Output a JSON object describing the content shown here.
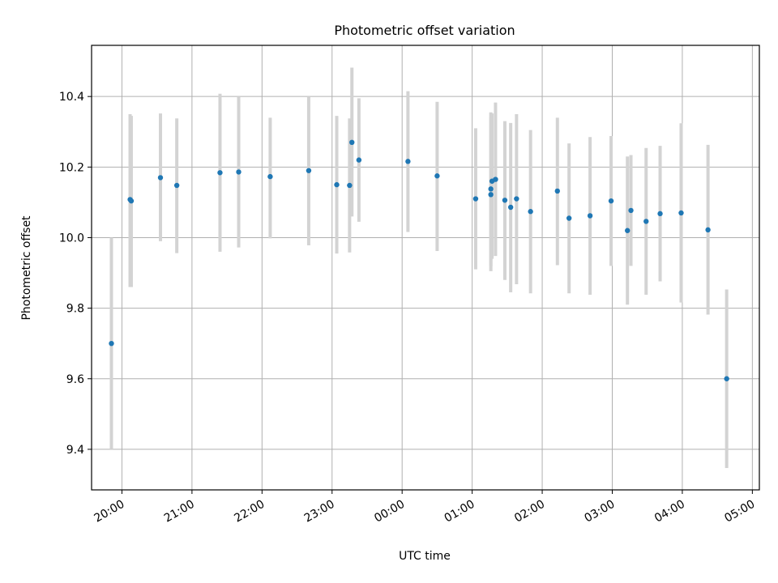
{
  "chart_data": {
    "type": "scatter",
    "title": "Photometric offset variation",
    "xlabel": "UTC time",
    "ylabel": "Photometric offset",
    "grid": true,
    "legend": "none",
    "xlim": [
      "19:34",
      "05:06"
    ],
    "ylim": [
      9.285,
      10.545
    ],
    "x_ticks": [
      "20:00",
      "21:00",
      "22:00",
      "23:00",
      "00:00",
      "01:00",
      "02:00",
      "03:00",
      "04:00",
      "05:00"
    ],
    "y_ticks": [
      9.4,
      9.6,
      9.8,
      10.0,
      10.2,
      10.4
    ],
    "y_tick_labels": [
      "9.4",
      "9.6",
      "9.8",
      "10.0",
      "10.2",
      "10.4"
    ],
    "colors": {
      "point": "#1f77b4",
      "error_bar": "#d3d3d3",
      "grid": "#b0b0b0"
    },
    "series": [
      {
        "points": [
          {
            "time": "19:51",
            "y": 9.7,
            "lo": 9.4,
            "hi": 10.0
          },
          {
            "time": "20:07",
            "y": 10.108,
            "lo": 9.86,
            "hi": 10.35
          },
          {
            "time": "20:08",
            "y": 10.104,
            "lo": 9.86,
            "hi": 10.345
          },
          {
            "time": "20:33",
            "y": 10.17,
            "lo": 9.99,
            "hi": 10.352
          },
          {
            "time": "20:47",
            "y": 10.148,
            "lo": 9.956,
            "hi": 10.338
          },
          {
            "time": "21:24",
            "y": 10.184,
            "lo": 9.96,
            "hi": 10.408
          },
          {
            "time": "21:40",
            "y": 10.186,
            "lo": 9.972,
            "hi": 10.4
          },
          {
            "time": "22:07",
            "y": 10.173,
            "lo": 9.998,
            "hi": 10.34
          },
          {
            "time": "22:40",
            "y": 10.19,
            "lo": 9.978,
            "hi": 10.4
          },
          {
            "time": "23:04",
            "y": 10.15,
            "lo": 9.955,
            "hi": 10.345
          },
          {
            "time": "23:15",
            "y": 10.148,
            "lo": 9.958,
            "hi": 10.338
          },
          {
            "time": "23:17",
            "y": 10.27,
            "lo": 10.06,
            "hi": 10.482
          },
          {
            "time": "23:23",
            "y": 10.22,
            "lo": 10.045,
            "hi": 10.395
          },
          {
            "time": "00:05",
            "y": 10.216,
            "lo": 10.016,
            "hi": 10.415
          },
          {
            "time": "00:30",
            "y": 10.175,
            "lo": 9.962,
            "hi": 10.385
          },
          {
            "time": "01:03",
            "y": 10.11,
            "lo": 9.91,
            "hi": 10.31
          },
          {
            "time": "01:16",
            "y": 10.138,
            "lo": 9.92,
            "hi": 10.355
          },
          {
            "time": "01:16",
            "y": 10.122,
            "lo": 9.905,
            "hi": 10.34
          },
          {
            "time": "01:17",
            "y": 10.16,
            "lo": 9.94,
            "hi": 10.352
          },
          {
            "time": "01:20",
            "y": 10.165,
            "lo": 9.948,
            "hi": 10.383
          },
          {
            "time": "01:28",
            "y": 10.106,
            "lo": 9.88,
            "hi": 10.33
          },
          {
            "time": "01:33",
            "y": 10.086,
            "lo": 9.845,
            "hi": 10.325
          },
          {
            "time": "01:38",
            "y": 10.11,
            "lo": 9.868,
            "hi": 10.35
          },
          {
            "time": "01:50",
            "y": 10.074,
            "lo": 9.842,
            "hi": 10.305
          },
          {
            "time": "02:13",
            "y": 10.132,
            "lo": 9.922,
            "hi": 10.34
          },
          {
            "time": "02:23",
            "y": 10.055,
            "lo": 9.842,
            "hi": 10.267
          },
          {
            "time": "02:41",
            "y": 10.062,
            "lo": 9.838,
            "hi": 10.285
          },
          {
            "time": "02:59",
            "y": 10.104,
            "lo": 9.92,
            "hi": 10.288
          },
          {
            "time": "03:13",
            "y": 10.02,
            "lo": 9.81,
            "hi": 10.23
          },
          {
            "time": "03:16",
            "y": 10.077,
            "lo": 9.92,
            "hi": 10.234
          },
          {
            "time": "03:29",
            "y": 10.046,
            "lo": 9.838,
            "hi": 10.254
          },
          {
            "time": "03:41",
            "y": 10.068,
            "lo": 9.876,
            "hi": 10.26
          },
          {
            "time": "03:59",
            "y": 10.07,
            "lo": 9.816,
            "hi": 10.324
          },
          {
            "time": "04:22",
            "y": 10.022,
            "lo": 9.782,
            "hi": 10.263
          },
          {
            "time": "04:38",
            "y": 9.6,
            "lo": 9.347,
            "hi": 9.853
          }
        ]
      }
    ]
  }
}
